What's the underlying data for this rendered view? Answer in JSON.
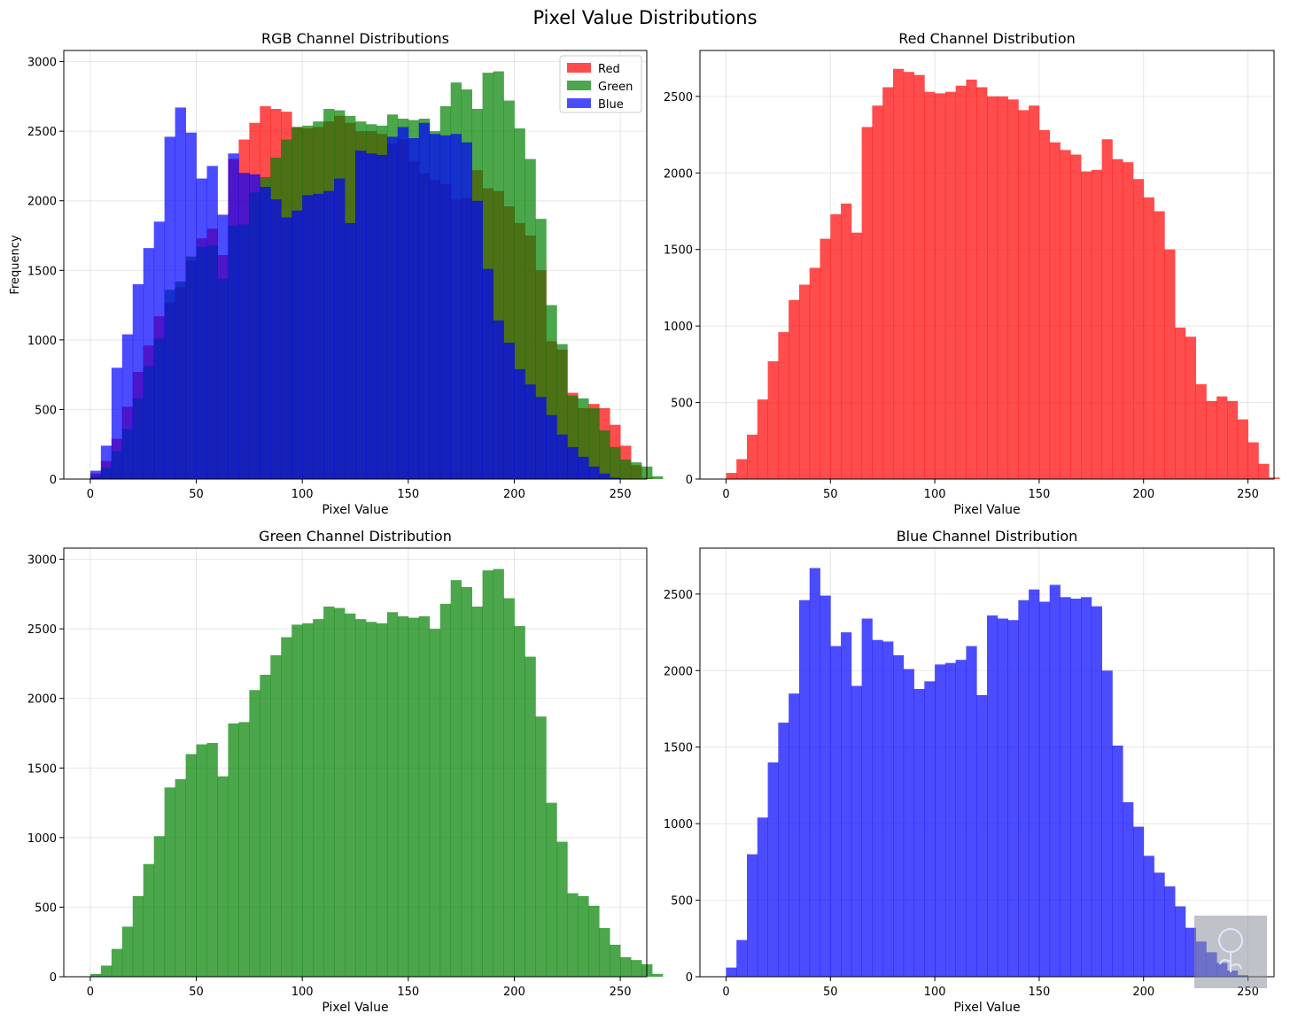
{
  "figure": {
    "title": "Pixel Value Distributions"
  },
  "chart_data": [
    {
      "type": "bar",
      "title": "RGB Channel Distributions",
      "xlabel": "Pixel Value",
      "ylabel": "Frequency",
      "xlim": [
        -12.5,
        262.5
      ],
      "ylim": [
        0,
        3080
      ],
      "xticks": [
        0,
        50,
        100,
        150,
        200,
        250
      ],
      "yticks": [
        0,
        500,
        1000,
        1500,
        2000,
        2500,
        3000
      ],
      "bin_start": 0,
      "bin_width": 5,
      "grid": true,
      "legend_position": "top-right",
      "opacity": 0.7,
      "series": [
        {
          "name": "Red",
          "color": "#ff0000",
          "values": [
            40,
            130,
            290,
            520,
            770,
            960,
            1170,
            1270,
            1380,
            1570,
            1730,
            1800,
            1610,
            2300,
            2440,
            2560,
            2680,
            2660,
            2640,
            2530,
            2520,
            2530,
            2570,
            2610,
            2560,
            2500,
            2500,
            2480,
            2410,
            2440,
            2280,
            2200,
            2150,
            2120,
            2010,
            2020,
            2220,
            2090,
            2070,
            1960,
            1840,
            1750,
            1500,
            990,
            930,
            620,
            510,
            540,
            510,
            390,
            240,
            100,
            10
          ]
        },
        {
          "name": "Green",
          "color": "#008000",
          "values": [
            20,
            80,
            200,
            360,
            580,
            810,
            1010,
            1360,
            1420,
            1600,
            1670,
            1680,
            1440,
            1820,
            1830,
            2060,
            2170,
            2310,
            2440,
            2530,
            2540,
            2570,
            2660,
            2650,
            2610,
            2570,
            2550,
            2540,
            2620,
            2590,
            2580,
            2590,
            2500,
            2680,
            2850,
            2800,
            2660,
            2920,
            2930,
            2720,
            2520,
            2300,
            1870,
            1250,
            970,
            600,
            580,
            510,
            350,
            230,
            140,
            120,
            90,
            20
          ]
        },
        {
          "name": "Blue",
          "color": "#0000ff",
          "values": [
            60,
            240,
            800,
            1040,
            1400,
            1660,
            1850,
            2460,
            2670,
            2490,
            2160,
            2250,
            1900,
            2340,
            2200,
            2190,
            2100,
            2010,
            1880,
            1930,
            2040,
            2050,
            2070,
            2160,
            1840,
            2360,
            2340,
            2330,
            2460,
            2530,
            2450,
            2560,
            2480,
            2470,
            2480,
            2420,
            2000,
            1510,
            1140,
            980,
            790,
            680,
            590,
            460,
            320,
            230,
            160,
            90,
            40,
            10
          ]
        }
      ]
    },
    {
      "type": "bar",
      "title": "Red Channel Distribution",
      "xlabel": "Pixel Value",
      "ylabel": "",
      "xlim": [
        -12.5,
        262.5
      ],
      "ylim": [
        0,
        2800
      ],
      "xticks": [
        0,
        50,
        100,
        150,
        200,
        250
      ],
      "yticks": [
        0,
        500,
        1000,
        1500,
        2000,
        2500
      ],
      "bin_start": 0,
      "bin_width": 5,
      "grid": true,
      "opacity": 0.7,
      "series": [
        {
          "name": "",
          "color": "#ff0000",
          "values": [
            40,
            130,
            290,
            520,
            770,
            960,
            1170,
            1270,
            1380,
            1570,
            1730,
            1800,
            1610,
            2300,
            2440,
            2560,
            2680,
            2660,
            2640,
            2530,
            2520,
            2530,
            2570,
            2610,
            2560,
            2500,
            2500,
            2480,
            2410,
            2440,
            2280,
            2200,
            2150,
            2120,
            2010,
            2020,
            2220,
            2090,
            2070,
            1960,
            1840,
            1750,
            1500,
            990,
            930,
            620,
            510,
            540,
            510,
            390,
            240,
            100,
            10
          ]
        }
      ]
    },
    {
      "type": "bar",
      "title": "Green Channel Distribution",
      "xlabel": "Pixel Value",
      "ylabel": "",
      "xlim": [
        -12.5,
        262.5
      ],
      "ylim": [
        0,
        3080
      ],
      "xticks": [
        0,
        50,
        100,
        150,
        200,
        250
      ],
      "yticks": [
        0,
        500,
        1000,
        1500,
        2000,
        2500,
        3000
      ],
      "bin_start": 0,
      "bin_width": 5,
      "grid": true,
      "opacity": 0.7,
      "series": [
        {
          "name": "",
          "color": "#008000",
          "values": [
            20,
            80,
            200,
            360,
            580,
            810,
            1010,
            1360,
            1420,
            1600,
            1670,
            1680,
            1440,
            1820,
            1830,
            2060,
            2170,
            2310,
            2440,
            2530,
            2540,
            2570,
            2660,
            2650,
            2610,
            2570,
            2550,
            2540,
            2620,
            2590,
            2580,
            2590,
            2500,
            2680,
            2850,
            2800,
            2660,
            2920,
            2930,
            2720,
            2520,
            2300,
            1870,
            1250,
            970,
            600,
            580,
            510,
            350,
            230,
            140,
            120,
            90,
            20
          ]
        }
      ]
    },
    {
      "type": "bar",
      "title": "Blue Channel Distribution",
      "xlabel": "Pixel Value",
      "ylabel": "",
      "xlim": [
        -12.5,
        262.5
      ],
      "ylim": [
        0,
        2800
      ],
      "xticks": [
        0,
        50,
        100,
        150,
        200,
        250
      ],
      "yticks": [
        0,
        500,
        1000,
        1500,
        2000,
        2500
      ],
      "bin_start": 0,
      "bin_width": 5,
      "grid": true,
      "opacity": 0.7,
      "series": [
        {
          "name": "",
          "color": "#0000ff",
          "values": [
            60,
            240,
            800,
            1040,
            1400,
            1660,
            1850,
            2460,
            2670,
            2490,
            2160,
            2250,
            1900,
            2340,
            2200,
            2190,
            2100,
            2010,
            1880,
            1930,
            2040,
            2050,
            2070,
            2160,
            1840,
            2360,
            2340,
            2330,
            2460,
            2530,
            2450,
            2560,
            2480,
            2470,
            2480,
            2420,
            2000,
            1510,
            1140,
            980,
            790,
            680,
            590,
            460,
            320,
            230,
            160,
            90,
            40,
            10
          ]
        }
      ]
    }
  ]
}
